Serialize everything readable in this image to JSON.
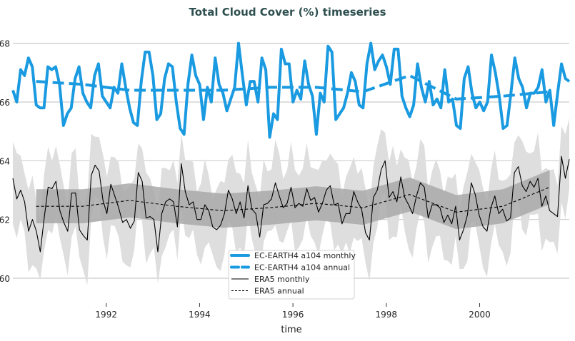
{
  "chart_data": {
    "type": "line",
    "title": "Total Cloud Cover (%) timeseries",
    "xlabel": "time",
    "ylabel": "",
    "xlim": [
      1990.0,
      2001.92
    ],
    "ylim": [
      59.15,
      68.55
    ],
    "xticks": [
      1992,
      1994,
      1996,
      1998,
      2000
    ],
    "xtick_labels": [
      "1992",
      "1994",
      "1996",
      "1998",
      "2000"
    ],
    "yticks": [
      60,
      62,
      64,
      66,
      68
    ],
    "ytick_labels": [
      "60",
      "62",
      "64",
      "66",
      "68"
    ],
    "grid": "horizontal",
    "legend_position": "bottom-center",
    "monthly_start": "1990-01",
    "series": [
      {
        "name": "EC-EARTH4 a104 monthly",
        "color": "#1a9ae0",
        "style": "solid-thick",
        "values": [
          66.4,
          66.0,
          67.1,
          66.9,
          67.5,
          67.2,
          65.9,
          65.8,
          65.8,
          67.2,
          67.1,
          67.2,
          66.6,
          65.2,
          65.6,
          65.8,
          66.8,
          67.2,
          66.3,
          66.0,
          65.8,
          66.9,
          67.3,
          66.2,
          66.0,
          65.8,
          66.5,
          66.3,
          67.3,
          66.5,
          65.8,
          65.3,
          65.2,
          66.7,
          67.7,
          67.7,
          66.9,
          65.4,
          65.6,
          66.8,
          67.3,
          67.2,
          66.0,
          65.1,
          64.9,
          66.6,
          67.6,
          66.9,
          66.6,
          65.4,
          66.5,
          66.0,
          67.5,
          66.6,
          66.3,
          65.7,
          66.1,
          66.5,
          68.0,
          66.9,
          65.9,
          66.7,
          66.7,
          66.0,
          67.5,
          67.1,
          64.8,
          65.6,
          65.4,
          67.8,
          67.3,
          67.3,
          66.0,
          66.4,
          66.1,
          67.4,
          66.6,
          66.2,
          64.9,
          66.3,
          66.0,
          67.9,
          67.7,
          65.4,
          65.6,
          65.8,
          66.3,
          67.0,
          66.7,
          65.9,
          65.8,
          67.3,
          68.0,
          67.1,
          67.4,
          67.6,
          67.2,
          66.6,
          67.8,
          67.8,
          66.2,
          65.8,
          65.5,
          65.9,
          67.3,
          66.5,
          66.0,
          66.7,
          65.9,
          66.1,
          65.8,
          67.1,
          66.0,
          66.1,
          65.2,
          65.1,
          66.8,
          67.2,
          66.3,
          65.8,
          66.0,
          65.7,
          66.0,
          67.6,
          67.0,
          66.2,
          65.1,
          65.2,
          66.3,
          67.5,
          66.8,
          66.5,
          65.8,
          66.3,
          66.3,
          66.5,
          67.1,
          66.0,
          66.4,
          65.2,
          66.3,
          67.3,
          66.8,
          66.7
        ]
      },
      {
        "name": "EC-EARTH4 a104 annual",
        "color": "#1a9ae0",
        "style": "dashed-thick",
        "x": [
          1990.5,
          1991.5,
          1992.5,
          1993.5,
          1994.5,
          1995.5,
          1996.5,
          1997.5,
          1998.5,
          1999.5,
          2000.5,
          2001.5
        ],
        "values": [
          66.7,
          66.6,
          66.4,
          66.4,
          66.4,
          66.5,
          66.5,
          66.35,
          66.9,
          66.1,
          66.2,
          66.35
        ]
      },
      {
        "name": "ERA5 monthly",
        "color": "#000000",
        "style": "solid-thin",
        "band_halfwidth": 1.25,
        "values": [
          63.4,
          62.7,
          63.0,
          62.6,
          61.6,
          62.0,
          61.6,
          60.9,
          62.05,
          63.1,
          63.05,
          63.3,
          62.3,
          61.9,
          61.6,
          62.9,
          62.9,
          61.65,
          61.45,
          61.3,
          63.5,
          63.85,
          63.65,
          62.65,
          62.2,
          63.2,
          62.8,
          62.4,
          61.9,
          62.0,
          61.7,
          61.95,
          63.6,
          63.3,
          62.05,
          62.1,
          62.0,
          60.9,
          62.2,
          62.6,
          62.7,
          62.6,
          61.75,
          63.9,
          62.95,
          62.5,
          62.6,
          62.0,
          62.0,
          62.5,
          62.3,
          61.75,
          61.65,
          61.8,
          62.2,
          63.0,
          62.7,
          62.2,
          62.6,
          62.05,
          63.15,
          62.35,
          62.2,
          61.4,
          62.5,
          62.55,
          62.7,
          63.25,
          62.8,
          62.4,
          62.55,
          63.1,
          62.4,
          62.55,
          62.45,
          63.05,
          62.65,
          62.75,
          62.25,
          62.55,
          63.0,
          63.15,
          62.5,
          62.55,
          61.85,
          62.2,
          62.2,
          62.95,
          62.6,
          62.35,
          61.55,
          61.3,
          62.75,
          63.0,
          63.7,
          64.0,
          62.75,
          62.95,
          62.6,
          63.45,
          62.75,
          62.5,
          62.2,
          62.8,
          63.25,
          63.1,
          62.05,
          62.5,
          62.5,
          62.4,
          61.9,
          62.15,
          61.85,
          62.45,
          61.3,
          61.65,
          62.15,
          63.25,
          62.85,
          62.15,
          61.75,
          61.6,
          62.4,
          62.8,
          62.2,
          62.35,
          61.95,
          62.05,
          63.6,
          63.8,
          63.15,
          62.95,
          63.3,
          63.1,
          63.4,
          62.45,
          62.8,
          62.3,
          62.2,
          62.1,
          64.15,
          63.4,
          64.05
        ]
      },
      {
        "name": "ERA5 annual",
        "color": "#000000",
        "style": "dashed-thin",
        "band_halfwidth": 0.58,
        "x": [
          1990.5,
          1991.5,
          1992.5,
          1993.5,
          1994.5,
          1995.5,
          1996.5,
          1997.5,
          1998.5,
          1999.5,
          2000.5,
          2001.5
        ],
        "values": [
          62.45,
          62.45,
          62.65,
          62.45,
          62.3,
          62.4,
          62.55,
          62.4,
          62.85,
          62.25,
          62.45,
          63.1
        ]
      }
    ]
  }
}
